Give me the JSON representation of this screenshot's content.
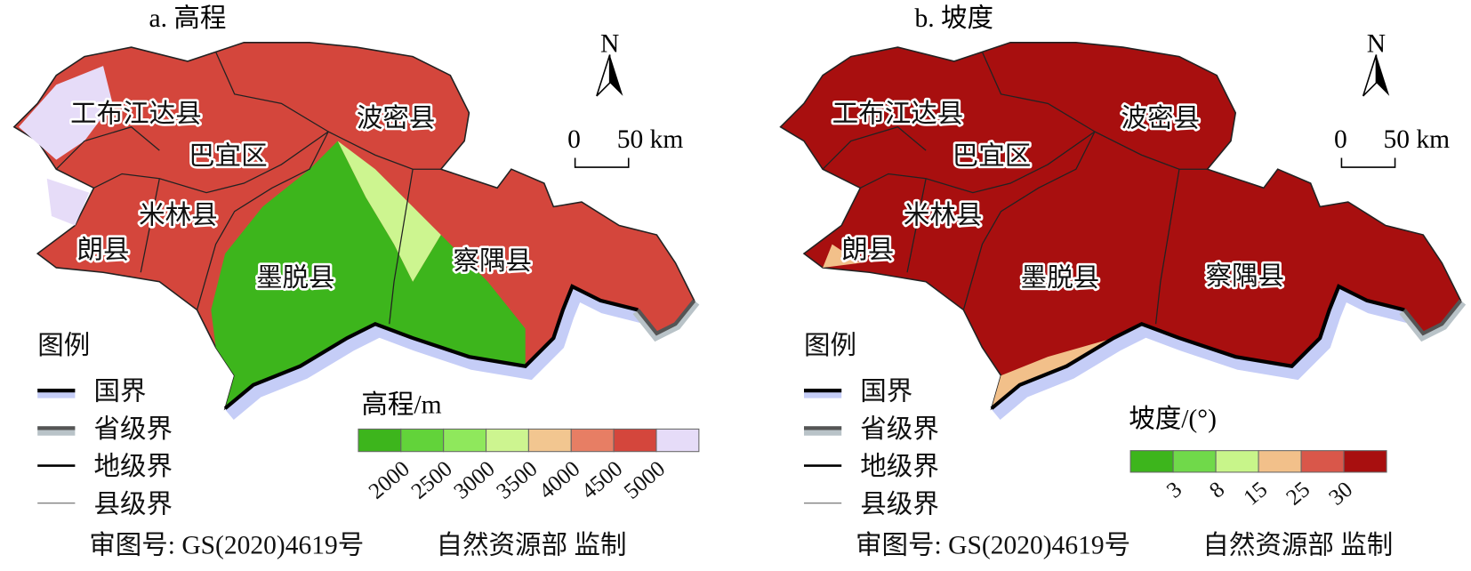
{
  "panels": [
    {
      "title": "a. 高程",
      "north": "N",
      "scale": {
        "zero": "0",
        "label": "50 km"
      },
      "regions": [
        "工布江达县",
        "巴宜区",
        "波密县",
        "米林县",
        "朗县",
        "墨脱县",
        "察隅县"
      ],
      "legend": {
        "title": "图例",
        "items": [
          "国界",
          "省级界",
          "地级界",
          "县级界"
        ]
      },
      "colorbar": {
        "title": "高程/m",
        "colors": [
          "#3db51c",
          "#62d33a",
          "#8fe85c",
          "#cdf590",
          "#f2c690",
          "#e77e64",
          "#d4463c",
          "#e6dcf8"
        ],
        "ticks": [
          "2000",
          "2500",
          "3000",
          "3500",
          "4000",
          "4500",
          "5000"
        ]
      },
      "review": "审图号: GS(2020)4619号",
      "agency": "自然资源部 监制"
    },
    {
      "title": "b. 坡度",
      "north": "N",
      "scale": {
        "zero": "0",
        "label": "50 km"
      },
      "regions": [
        "工布江达县",
        "巴宜区",
        "波密县",
        "米林县",
        "朗县",
        "墨脱县",
        "察隅县"
      ],
      "legend": {
        "title": "图例",
        "items": [
          "国界",
          "省级界",
          "地级界",
          "县级界"
        ]
      },
      "colorbar": {
        "title": "坡度/(°)",
        "colors": [
          "#3db51c",
          "#70d94a",
          "#c8f58a",
          "#f2c08a",
          "#d9574a",
          "#a80f0f"
        ],
        "ticks": [
          "3",
          "8",
          "15",
          "25",
          "30"
        ]
      },
      "review": "审图号: GS(2020)4619号",
      "agency": "自然资源部 监制"
    }
  ]
}
